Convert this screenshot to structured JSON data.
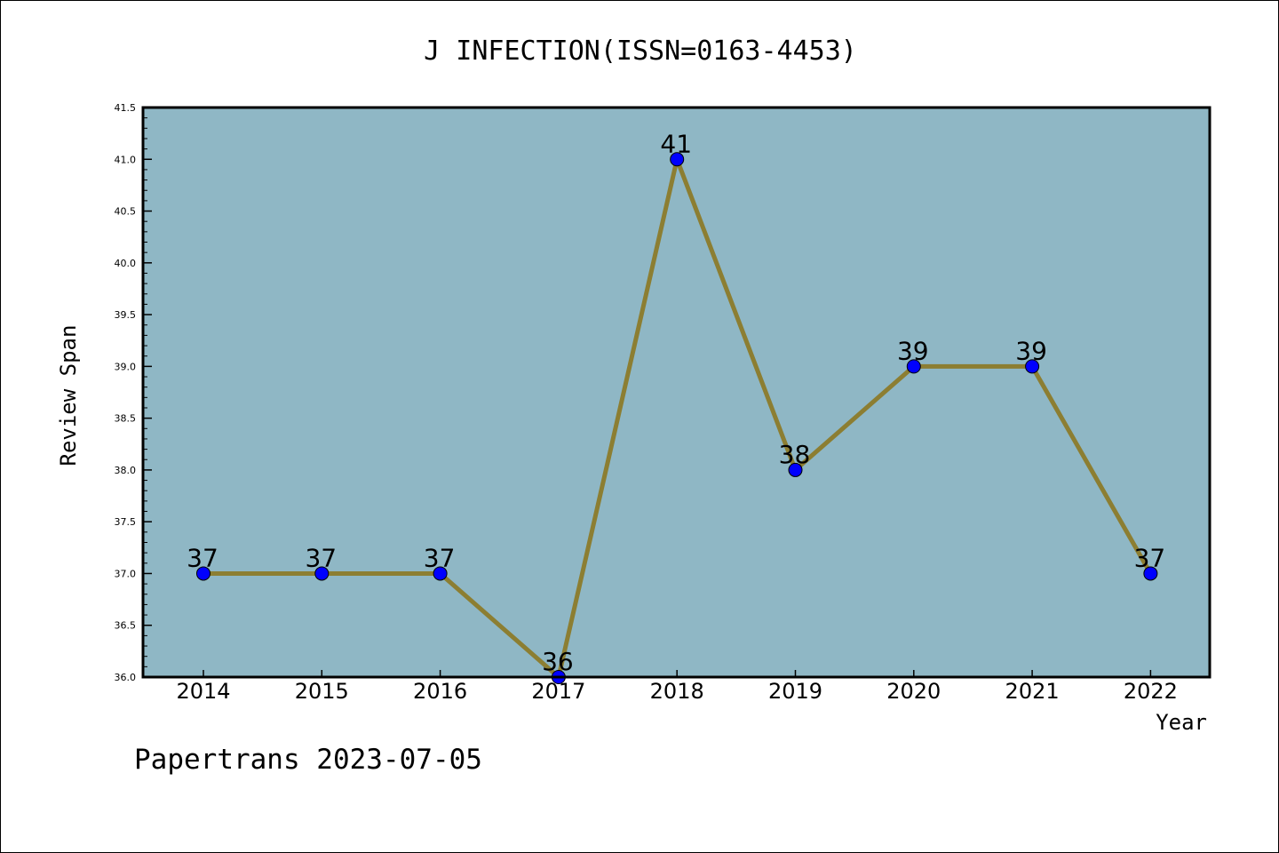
{
  "chart_data": {
    "type": "line",
    "title": "J INFECTION(ISSN=0163-4453)",
    "xlabel": "Year",
    "ylabel": "Review Span",
    "categories": [
      "2014",
      "2015",
      "2016",
      "2017",
      "2018",
      "2019",
      "2020",
      "2021",
      "2022"
    ],
    "values": [
      37,
      37,
      37,
      36,
      41,
      38,
      39,
      39,
      37
    ],
    "data_labels": [
      "37",
      "37",
      "37",
      "36",
      "41",
      "38",
      "39",
      "39",
      "37"
    ],
    "ylim": [
      36.0,
      41.5
    ],
    "yticks": [
      "36.0",
      "36.5",
      "37.0",
      "37.5",
      "38.0",
      "38.5",
      "39.0",
      "39.5",
      "40.0",
      "40.5",
      "41.0",
      "41.5"
    ],
    "grid": false,
    "legend": "none",
    "colors": {
      "plot_background": "#8fb7c5",
      "line": "#8c7e32",
      "marker": "#0000ff"
    }
  },
  "footer": {
    "watermark": "Papertrans 2023-07-05"
  }
}
